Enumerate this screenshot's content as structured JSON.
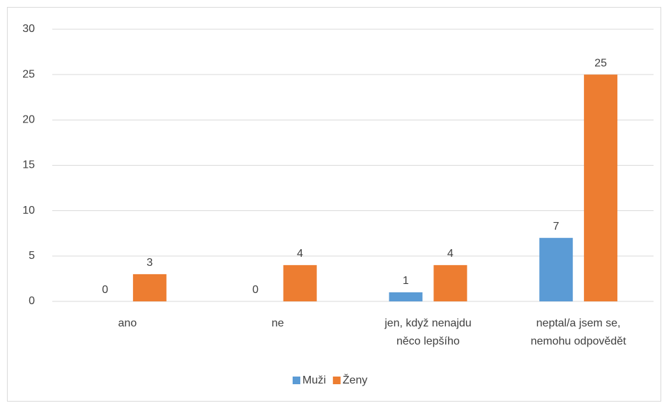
{
  "chart_data": {
    "type": "bar",
    "categories": [
      "ano",
      "ne",
      "jen, když nenajdu\nněco lepšího",
      "neptal/a jsem se,\nnemohu odpovědět"
    ],
    "series": [
      {
        "name": "Muži",
        "color": "#5b9bd5",
        "values": [
          0,
          0,
          1,
          7
        ]
      },
      {
        "name": "Ženy",
        "color": "#ed7d31",
        "values": [
          3,
          4,
          4,
          25
        ]
      }
    ],
    "ylim": [
      0,
      30
    ],
    "yticks": [
      0,
      5,
      10,
      15,
      20,
      25,
      30
    ],
    "grid": true,
    "legend": "bottom"
  }
}
